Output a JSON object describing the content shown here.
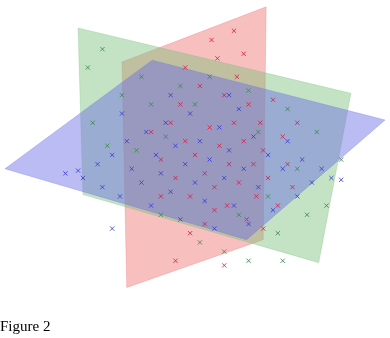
{
  "chart_data": {
    "type": "scatter",
    "title": "Figure 2",
    "xlim": [
      0,
      390
    ],
    "ylim": [
      0,
      338
    ],
    "grid": false,
    "tick_labels": false,
    "series": [
      {
        "type": "polygon",
        "color": "#6b6be6",
        "values": [
          [
            0,
            160
          ],
          [
            151,
            278
          ],
          [
            390,
            213
          ],
          [
            248,
            83
          ]
        ]
      },
      {
        "type": "polygon",
        "color": "#7cc07c",
        "values": [
          [
            75,
            313
          ],
          [
            355,
            242
          ],
          [
            322,
            58
          ],
          [
            80,
            132
          ]
        ]
      },
      {
        "type": "polygon",
        "color": "#f07070",
        "values": [
          [
            120,
            276
          ],
          [
            268,
            336
          ],
          [
            265,
            83
          ],
          [
            125,
            31
          ]
        ]
      },
      {
        "color": "#3b3bd6",
        "marker": "x",
        "values": [
          [
            62,
            155
          ],
          [
            75,
            158
          ],
          [
            80,
            150
          ],
          [
            95,
            165
          ],
          [
            100,
            140
          ],
          [
            110,
            175
          ],
          [
            118,
            130
          ],
          [
            125,
            190
          ],
          [
            130,
            160
          ],
          [
            140,
            145
          ],
          [
            145,
            200
          ],
          [
            150,
            120
          ],
          [
            155,
            175
          ],
          [
            160,
            155
          ],
          [
            165,
            210
          ],
          [
            170,
            135
          ],
          [
            175,
            185
          ],
          [
            180,
            105
          ],
          [
            185,
            165
          ],
          [
            190,
            220
          ],
          [
            195,
            145
          ],
          [
            200,
            190
          ],
          [
            205,
            125
          ],
          [
            210,
            170
          ],
          [
            215,
            95
          ],
          [
            220,
            205
          ],
          [
            225,
            150
          ],
          [
            230,
            180
          ],
          [
            235,
            120
          ],
          [
            240,
            225
          ],
          [
            245,
            160
          ],
          [
            250,
            100
          ],
          [
            255,
            195
          ],
          [
            260,
            140
          ],
          [
            270,
            175
          ],
          [
            275,
            115
          ],
          [
            285,
            160
          ],
          [
            290,
            190
          ],
          [
            300,
            130
          ],
          [
            305,
            170
          ],
          [
            315,
            145
          ],
          [
            325,
            160
          ],
          [
            335,
            150
          ],
          [
            345,
            148
          ],
          [
            120,
            220
          ],
          [
            170,
            240
          ],
          [
            110,
            95
          ],
          [
            230,
            240
          ]
        ]
      },
      {
        "color": "#3a8a4a",
        "marker": "x",
        "values": [
          [
            85,
            270
          ],
          [
            100,
            290
          ],
          [
            120,
            240
          ],
          [
            90,
            210
          ],
          [
            135,
            180
          ],
          [
            150,
            230
          ],
          [
            160,
            110
          ],
          [
            180,
            250
          ],
          [
            200,
            80
          ],
          [
            210,
            260
          ],
          [
            225,
            70
          ],
          [
            240,
            110
          ],
          [
            250,
            245
          ],
          [
            260,
            200
          ],
          [
            270,
            130
          ],
          [
            280,
            90
          ],
          [
            290,
            225
          ],
          [
            300,
            160
          ],
          [
            310,
            110
          ],
          [
            320,
            200
          ],
          [
            330,
            120
          ],
          [
            285,
            60
          ],
          [
            250,
            60
          ],
          [
            195,
            230
          ],
          [
            165,
            195
          ],
          [
            140,
            260
          ],
          [
            105,
            185
          ],
          [
            345,
            170
          ]
        ]
      },
      {
        "color": "#d6204a",
        "marker": "x",
        "values": [
          [
            150,
            200
          ],
          [
            160,
            170
          ],
          [
            170,
            210
          ],
          [
            175,
            150
          ],
          [
            180,
            230
          ],
          [
            185,
            190
          ],
          [
            190,
            130
          ],
          [
            195,
            175
          ],
          [
            200,
            250
          ],
          [
            205,
            155
          ],
          [
            210,
            205
          ],
          [
            212,
            300
          ],
          [
            215,
            140
          ],
          [
            218,
            280
          ],
          [
            220,
            185
          ],
          [
            225,
            240
          ],
          [
            228,
            120
          ],
          [
            230,
            165
          ],
          [
            235,
            210
          ],
          [
            238,
            260
          ],
          [
            240,
            145
          ],
          [
            245,
            190
          ],
          [
            248,
            105
          ],
          [
            250,
            230
          ],
          [
            255,
            165
          ],
          [
            258,
            130
          ],
          [
            262,
            210
          ],
          [
            265,
            180
          ],
          [
            270,
            150
          ],
          [
            275,
            235
          ],
          [
            280,
            120
          ],
          [
            285,
            195
          ],
          [
            290,
            165
          ],
          [
            295,
            140
          ],
          [
            300,
            210
          ],
          [
            205,
            100
          ],
          [
            190,
            90
          ],
          [
            175,
            60
          ],
          [
            225,
            55
          ],
          [
            265,
            95
          ],
          [
            185,
            270
          ],
          [
            235,
            310
          ],
          [
            160,
            130
          ],
          [
            245,
            285
          ],
          [
            215,
            115
          ]
        ]
      }
    ]
  }
}
